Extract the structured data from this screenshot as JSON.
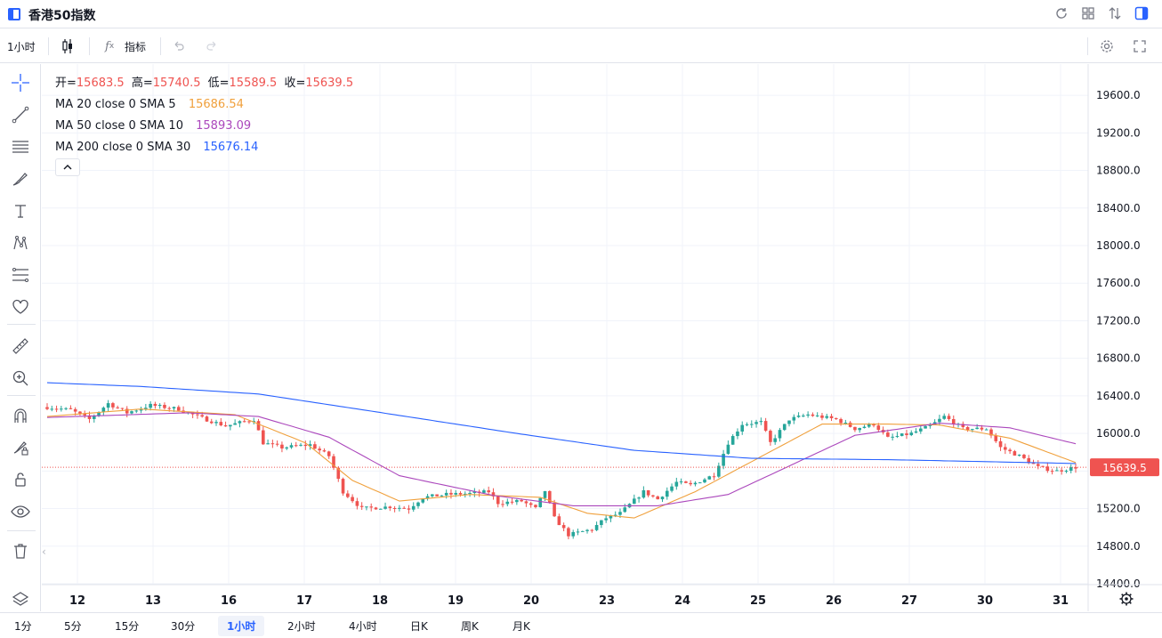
{
  "title": "香港50指数",
  "toolbar": {
    "interval": "1小时",
    "indicators_label": "指标"
  },
  "legend": {
    "open_label": "开=",
    "open": "15683.5",
    "high_label": "高=",
    "high": "15740.5",
    "low_label": "低=",
    "low": "15589.5",
    "close_label": "收=",
    "close": "15639.5",
    "ma1_label": "MA 20 close 0 SMA 5",
    "ma1_value": "15686.54",
    "ma2_label": "MA 50 close 0 SMA 10",
    "ma2_value": "15893.09",
    "ma3_label": "MA 200 close 0 SMA 30",
    "ma3_value": "15676.14"
  },
  "colors": {
    "up": "#26a69a",
    "down": "#ef5350",
    "ma1": "#f0a03c",
    "ma2": "#ab47bc",
    "ma3": "#2962ff",
    "accent": "#2962ff"
  },
  "chart_data": {
    "type": "candlestick",
    "symbol": "香港50指数",
    "interval": "1小时",
    "ylim": [
      14400,
      19800
    ],
    "y_ticks": [
      "19600.0",
      "19200.0",
      "18800.0",
      "18400.0",
      "18000.0",
      "17600.0",
      "17200.0",
      "16800.0",
      "16400.0",
      "16000.0",
      "15600.0",
      "15200.0",
      "14800.0",
      "14400.0"
    ],
    "x_ticks": [
      "12",
      "13",
      "16",
      "17",
      "18",
      "19",
      "20",
      "23",
      "24",
      "25",
      "26",
      "27",
      "30",
      "31"
    ],
    "last_price": "15639.5",
    "keypoints": [
      {
        "t": 0,
        "p": 16280
      },
      {
        "t": 5,
        "p": 16250
      },
      {
        "t": 9,
        "p": 16150
      },
      {
        "t": 13,
        "p": 16320
      },
      {
        "t": 17,
        "p": 16220
      },
      {
        "t": 22,
        "p": 16300
      },
      {
        "t": 28,
        "p": 16260
      },
      {
        "t": 32,
        "p": 16180
      },
      {
        "t": 38,
        "p": 16080
      },
      {
        "t": 44,
        "p": 16150
      },
      {
        "t": 46,
        "p": 15900
      },
      {
        "t": 50,
        "p": 15850
      },
      {
        "t": 56,
        "p": 15880
      },
      {
        "t": 60,
        "p": 15760
      },
      {
        "t": 63,
        "p": 15380
      },
      {
        "t": 67,
        "p": 15200
      },
      {
        "t": 73,
        "p": 15220
      },
      {
        "t": 77,
        "p": 15200
      },
      {
        "t": 80,
        "p": 15320
      },
      {
        "t": 85,
        "p": 15350
      },
      {
        "t": 90,
        "p": 15360
      },
      {
        "t": 94,
        "p": 15380
      },
      {
        "t": 96,
        "p": 15260
      },
      {
        "t": 101,
        "p": 15280
      },
      {
        "t": 104,
        "p": 15200
      },
      {
        "t": 106,
        "p": 15390
      },
      {
        "t": 108,
        "p": 15100
      },
      {
        "t": 111,
        "p": 14920
      },
      {
        "t": 116,
        "p": 14980
      },
      {
        "t": 119,
        "p": 15100
      },
      {
        "t": 122,
        "p": 15150
      },
      {
        "t": 127,
        "p": 15380
      },
      {
        "t": 130,
        "p": 15300
      },
      {
        "t": 134,
        "p": 15480
      },
      {
        "t": 137,
        "p": 15450
      },
      {
        "t": 142,
        "p": 15560
      },
      {
        "t": 145,
        "p": 15900
      },
      {
        "t": 148,
        "p": 16100
      },
      {
        "t": 152,
        "p": 16120
      },
      {
        "t": 154,
        "p": 15900
      },
      {
        "t": 158,
        "p": 16150
      },
      {
        "t": 162,
        "p": 16200
      },
      {
        "t": 168,
        "p": 16150
      },
      {
        "t": 172,
        "p": 16050
      },
      {
        "t": 176,
        "p": 16100
      },
      {
        "t": 179,
        "p": 15950
      },
      {
        "t": 184,
        "p": 16000
      },
      {
        "t": 188,
        "p": 16080
      },
      {
        "t": 191,
        "p": 16180
      },
      {
        "t": 195,
        "p": 16050
      },
      {
        "t": 200,
        "p": 16050
      },
      {
        "t": 203,
        "p": 15850
      },
      {
        "t": 207,
        "p": 15760
      },
      {
        "t": 211,
        "p": 15640
      },
      {
        "t": 215,
        "p": 15600
      },
      {
        "t": 219,
        "p": 15640
      }
    ],
    "ma_series": [
      {
        "name": "MA 20 close 0 SMA 5",
        "color": "#f0a03c",
        "points": [
          {
            "t": 0,
            "p": 16180
          },
          {
            "t": 20,
            "p": 16260
          },
          {
            "t": 40,
            "p": 16200
          },
          {
            "t": 55,
            "p": 15900
          },
          {
            "t": 65,
            "p": 15500
          },
          {
            "t": 75,
            "p": 15280
          },
          {
            "t": 90,
            "p": 15350
          },
          {
            "t": 105,
            "p": 15320
          },
          {
            "t": 115,
            "p": 15150
          },
          {
            "t": 125,
            "p": 15100
          },
          {
            "t": 138,
            "p": 15380
          },
          {
            "t": 150,
            "p": 15700
          },
          {
            "t": 165,
            "p": 16100
          },
          {
            "t": 178,
            "p": 16100
          },
          {
            "t": 190,
            "p": 16090
          },
          {
            "t": 205,
            "p": 15950
          },
          {
            "t": 219,
            "p": 15690
          }
        ]
      },
      {
        "name": "MA 50 close 0 SMA 10",
        "color": "#ab47bc",
        "points": [
          {
            "t": 0,
            "p": 16170
          },
          {
            "t": 30,
            "p": 16220
          },
          {
            "t": 45,
            "p": 16180
          },
          {
            "t": 60,
            "p": 15960
          },
          {
            "t": 75,
            "p": 15550
          },
          {
            "t": 95,
            "p": 15340
          },
          {
            "t": 112,
            "p": 15230
          },
          {
            "t": 130,
            "p": 15230
          },
          {
            "t": 145,
            "p": 15350
          },
          {
            "t": 160,
            "p": 15700
          },
          {
            "t": 172,
            "p": 15980
          },
          {
            "t": 190,
            "p": 16110
          },
          {
            "t": 205,
            "p": 16060
          },
          {
            "t": 219,
            "p": 15890
          }
        ]
      },
      {
        "name": "MA 200 close 0 SMA 30",
        "color": "#2962ff",
        "points": [
          {
            "t": 0,
            "p": 16540
          },
          {
            "t": 20,
            "p": 16500
          },
          {
            "t": 45,
            "p": 16420
          },
          {
            "t": 70,
            "p": 16230
          },
          {
            "t": 100,
            "p": 16000
          },
          {
            "t": 125,
            "p": 15820
          },
          {
            "t": 150,
            "p": 15735
          },
          {
            "t": 180,
            "p": 15720
          },
          {
            "t": 219,
            "p": 15680
          }
        ]
      }
    ]
  },
  "bottombar": {
    "timeframes": [
      "1分",
      "5分",
      "15分",
      "30分",
      "1小时",
      "2小时",
      "4小时",
      "日K",
      "周K",
      "月K"
    ],
    "active": "1小时"
  }
}
